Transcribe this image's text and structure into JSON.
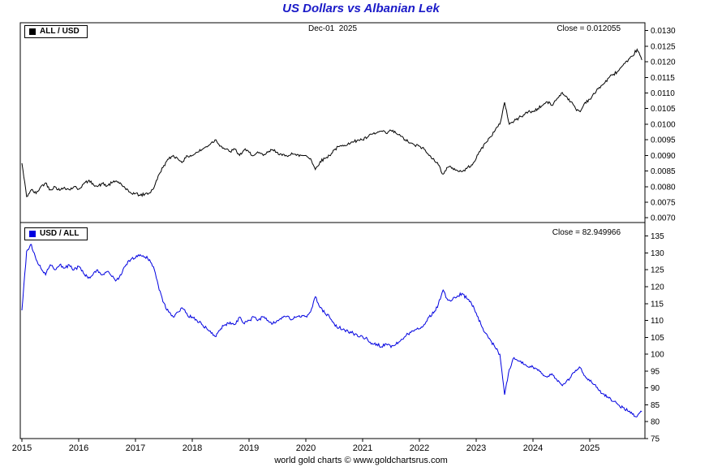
{
  "title": "US Dollars vs Albanian Lek",
  "footer": "world gold charts © www.goldchartsrus.com",
  "colors": {
    "title": "#1a1ac8",
    "frame": "#000000",
    "text": "#000000"
  },
  "top_panel": {
    "legend": "ALL / USD",
    "date_label": "Dec-01  2025",
    "close_label": "Close = 0.012055",
    "y_ticks": [
      "0.0130",
      "0.0125",
      "0.0120",
      "0.0115",
      "0.0110",
      "0.0105",
      "0.0100",
      "0.0095",
      "0.0090",
      "0.0085",
      "0.0080",
      "0.0075",
      "0.0070"
    ]
  },
  "bottom_panel": {
    "legend": "USD / ALL",
    "close_label": "Close = 82.949966",
    "y_ticks": [
      "135",
      "130",
      "125",
      "120",
      "115",
      "110",
      "105",
      "100",
      "95",
      "90",
      "85",
      "80",
      "75"
    ]
  },
  "x_ticks": [
    "2015",
    "2016",
    "2017",
    "2018",
    "2019",
    "2020",
    "2021",
    "2022",
    "2023",
    "2024",
    "2025"
  ],
  "chart_data": [
    {
      "type": "line",
      "name": "ALL / USD",
      "color": "#000000",
      "close": 0.012055,
      "x_start": 2015.0,
      "x_step": 0.0833333,
      "xlim": [
        2015,
        2026
      ],
      "ylim": [
        0.00685,
        0.01325
      ],
      "jitter": 5e-05,
      "values": [
        0.00875,
        0.00768,
        0.0079,
        0.00778,
        0.008,
        0.00812,
        0.0079,
        0.008,
        0.00788,
        0.00798,
        0.0079,
        0.008,
        0.00792,
        0.00808,
        0.00818,
        0.0081,
        0.008,
        0.0081,
        0.00802,
        0.00812,
        0.00818,
        0.00808,
        0.0079,
        0.0078,
        0.00778,
        0.00772,
        0.00776,
        0.0078,
        0.008,
        0.0084,
        0.00868,
        0.00888,
        0.009,
        0.00888,
        0.0088,
        0.00898,
        0.009,
        0.0091,
        0.00918,
        0.00928,
        0.0094,
        0.0095,
        0.0093,
        0.0092,
        0.00912,
        0.0092,
        0.009,
        0.00918,
        0.0091,
        0.009,
        0.00908,
        0.009,
        0.0091,
        0.00918,
        0.0091,
        0.009,
        0.00898,
        0.00908,
        0.009,
        0.009,
        0.009,
        0.0089,
        0.00855,
        0.0088,
        0.0089,
        0.009,
        0.00918,
        0.00928,
        0.0093,
        0.0094,
        0.00942,
        0.0095,
        0.0095,
        0.00958,
        0.00968,
        0.00972,
        0.00978,
        0.0097,
        0.0098,
        0.00972,
        0.00962,
        0.0095,
        0.0094,
        0.00932,
        0.0093,
        0.0092,
        0.009,
        0.0089,
        0.0087,
        0.0084,
        0.00862,
        0.0086,
        0.00852,
        0.00848,
        0.00858,
        0.0087,
        0.0089,
        0.0092,
        0.0094,
        0.0096,
        0.0098,
        0.01,
        0.0107,
        0.01,
        0.0101,
        0.0102,
        0.0103,
        0.0104,
        0.0104,
        0.0105,
        0.0106,
        0.01072,
        0.0106,
        0.0108,
        0.011,
        0.0109,
        0.01072,
        0.0105,
        0.0104,
        0.0107,
        0.0108,
        0.01098,
        0.01118,
        0.0113,
        0.01148,
        0.0116,
        0.0117,
        0.01188,
        0.012,
        0.01218,
        0.0124,
        0.012055
      ]
    },
    {
      "type": "line",
      "name": "USD / ALL",
      "color": "#0000e0",
      "close": 82.949966,
      "x_start": 2015.0,
      "x_step": 0.0833333,
      "xlim": [
        2015,
        2026
      ],
      "ylim": [
        75,
        139
      ],
      "jitter": 0.5,
      "values": [
        113.0,
        130.5,
        132.5,
        128.0,
        125.5,
        123.5,
        126.5,
        125.0,
        126.5,
        125.5,
        126.5,
        125.0,
        126.0,
        124.0,
        122.5,
        123.5,
        125.0,
        123.5,
        124.5,
        123.0,
        122.0,
        123.5,
        126.5,
        128.0,
        128.5,
        129.5,
        128.8,
        128.0,
        125.0,
        119.0,
        115.2,
        112.5,
        111.0,
        112.5,
        113.5,
        111.5,
        111.0,
        110.0,
        108.8,
        107.8,
        106.2,
        105.2,
        107.5,
        108.8,
        109.5,
        108.8,
        111.0,
        109.0,
        110.0,
        111.0,
        110.2,
        111.0,
        110.0,
        109.0,
        110.0,
        111.0,
        111.2,
        110.2,
        111.0,
        111.0,
        111.2,
        112.5,
        117.0,
        113.8,
        112.2,
        111.0,
        109.0,
        107.8,
        107.5,
        106.5,
        106.2,
        105.2,
        105.2,
        104.5,
        103.2,
        103.0,
        102.2,
        103.0,
        102.0,
        102.8,
        104.0,
        105.2,
        106.5,
        107.2,
        107.5,
        108.8,
        111.0,
        112.2,
        114.8,
        119.0,
        116.0,
        116.2,
        117.2,
        118.0,
        116.5,
        115.0,
        112.2,
        108.8,
        106.2,
        104.2,
        102.0,
        100.0,
        88.0,
        95.5,
        99.0,
        98.0,
        97.0,
        96.2,
        96.2,
        95.2,
        94.2,
        93.2,
        94.2,
        92.5,
        91.0,
        91.8,
        93.2,
        95.2,
        96.0,
        93.5,
        92.0,
        91.0,
        89.2,
        88.2,
        87.0,
        86.0,
        85.0,
        84.2,
        83.2,
        82.2,
        81.5,
        82.949966
      ]
    }
  ]
}
